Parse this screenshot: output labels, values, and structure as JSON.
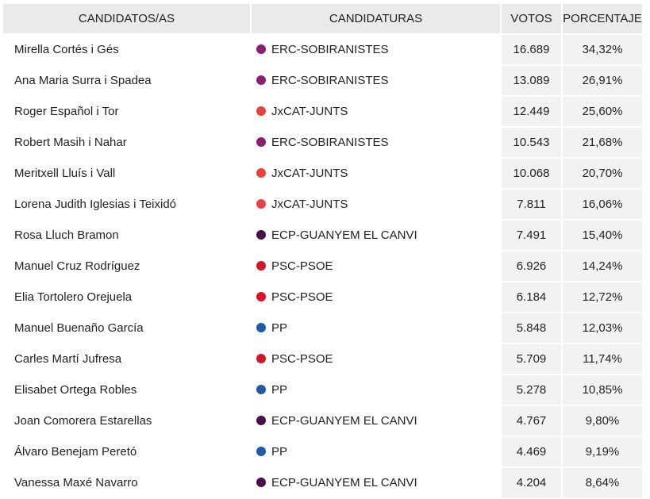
{
  "headers": {
    "candidates": "CANDIDATOS/AS",
    "parties": "CANDIDATURAS",
    "votes": "VOTOS",
    "percentage": "PORCENTAJE"
  },
  "rows": [
    {
      "name": "Mirella Cortés i Gés",
      "party": "ERC-SOBIRANISTES",
      "color": "#8b1e6e",
      "votes": "16.689",
      "pct": "34,32%"
    },
    {
      "name": "Ana Maria Surra i Spadea",
      "party": "ERC-SOBIRANISTES",
      "color": "#8b1e6e",
      "votes": "13.089",
      "pct": "26,91%"
    },
    {
      "name": "Roger Español i Tor",
      "party": "JxCAT-JUNTS",
      "color": "#e8413f",
      "votes": "12.449",
      "pct": "25,60%"
    },
    {
      "name": "Robert Masih i Nahar",
      "party": "ERC-SOBIRANISTES",
      "color": "#8b1e6e",
      "votes": "10.543",
      "pct": "21,68%"
    },
    {
      "name": "Meritxell Lluís i Vall",
      "party": "JxCAT-JUNTS",
      "color": "#e8413f",
      "votes": "10.068",
      "pct": "20,70%"
    },
    {
      "name": "Lorena Judith Iglesias i Teixidó",
      "party": "JxCAT-JUNTS",
      "color": "#e8413f",
      "votes": "7.811",
      "pct": "16,06%"
    },
    {
      "name": "Rosa Lluch Bramon",
      "party": "ECP-GUANYEM EL CANVI",
      "color": "#4a0f4a",
      "votes": "7.491",
      "pct": "15,40%"
    },
    {
      "name": "Manuel Cruz Rodríguez",
      "party": "PSC-PSOE",
      "color": "#d51528",
      "votes": "6.926",
      "pct": "14,24%"
    },
    {
      "name": "Elia Tortolero Orejuela",
      "party": "PSC-PSOE",
      "color": "#d51528",
      "votes": "6.184",
      "pct": "12,72%"
    },
    {
      "name": "Manuel Buenaño García",
      "party": "PP",
      "color": "#1f5aa6",
      "votes": "5.848",
      "pct": "12,03%"
    },
    {
      "name": "Carles Martí Jufresa",
      "party": "PSC-PSOE",
      "color": "#d51528",
      "votes": "5.709",
      "pct": "11,74%"
    },
    {
      "name": "Elisabet Ortega Robles",
      "party": "PP",
      "color": "#1f5aa6",
      "votes": "5.278",
      "pct": "10,85%"
    },
    {
      "name": "Joan Comorera Estarellas",
      "party": "ECP-GUANYEM EL CANVI",
      "color": "#4a0f4a",
      "votes": "4.767",
      "pct": "9,80%"
    },
    {
      "name": "Álvaro Benejam Peretó",
      "party": "PP",
      "color": "#1f5aa6",
      "votes": "4.469",
      "pct": "9,19%"
    },
    {
      "name": "Vanessa Maxé Navarro",
      "party": "ECP-GUANYEM EL CANVI",
      "color": "#4a0f4a",
      "votes": "4.204",
      "pct": "8,64%"
    }
  ]
}
